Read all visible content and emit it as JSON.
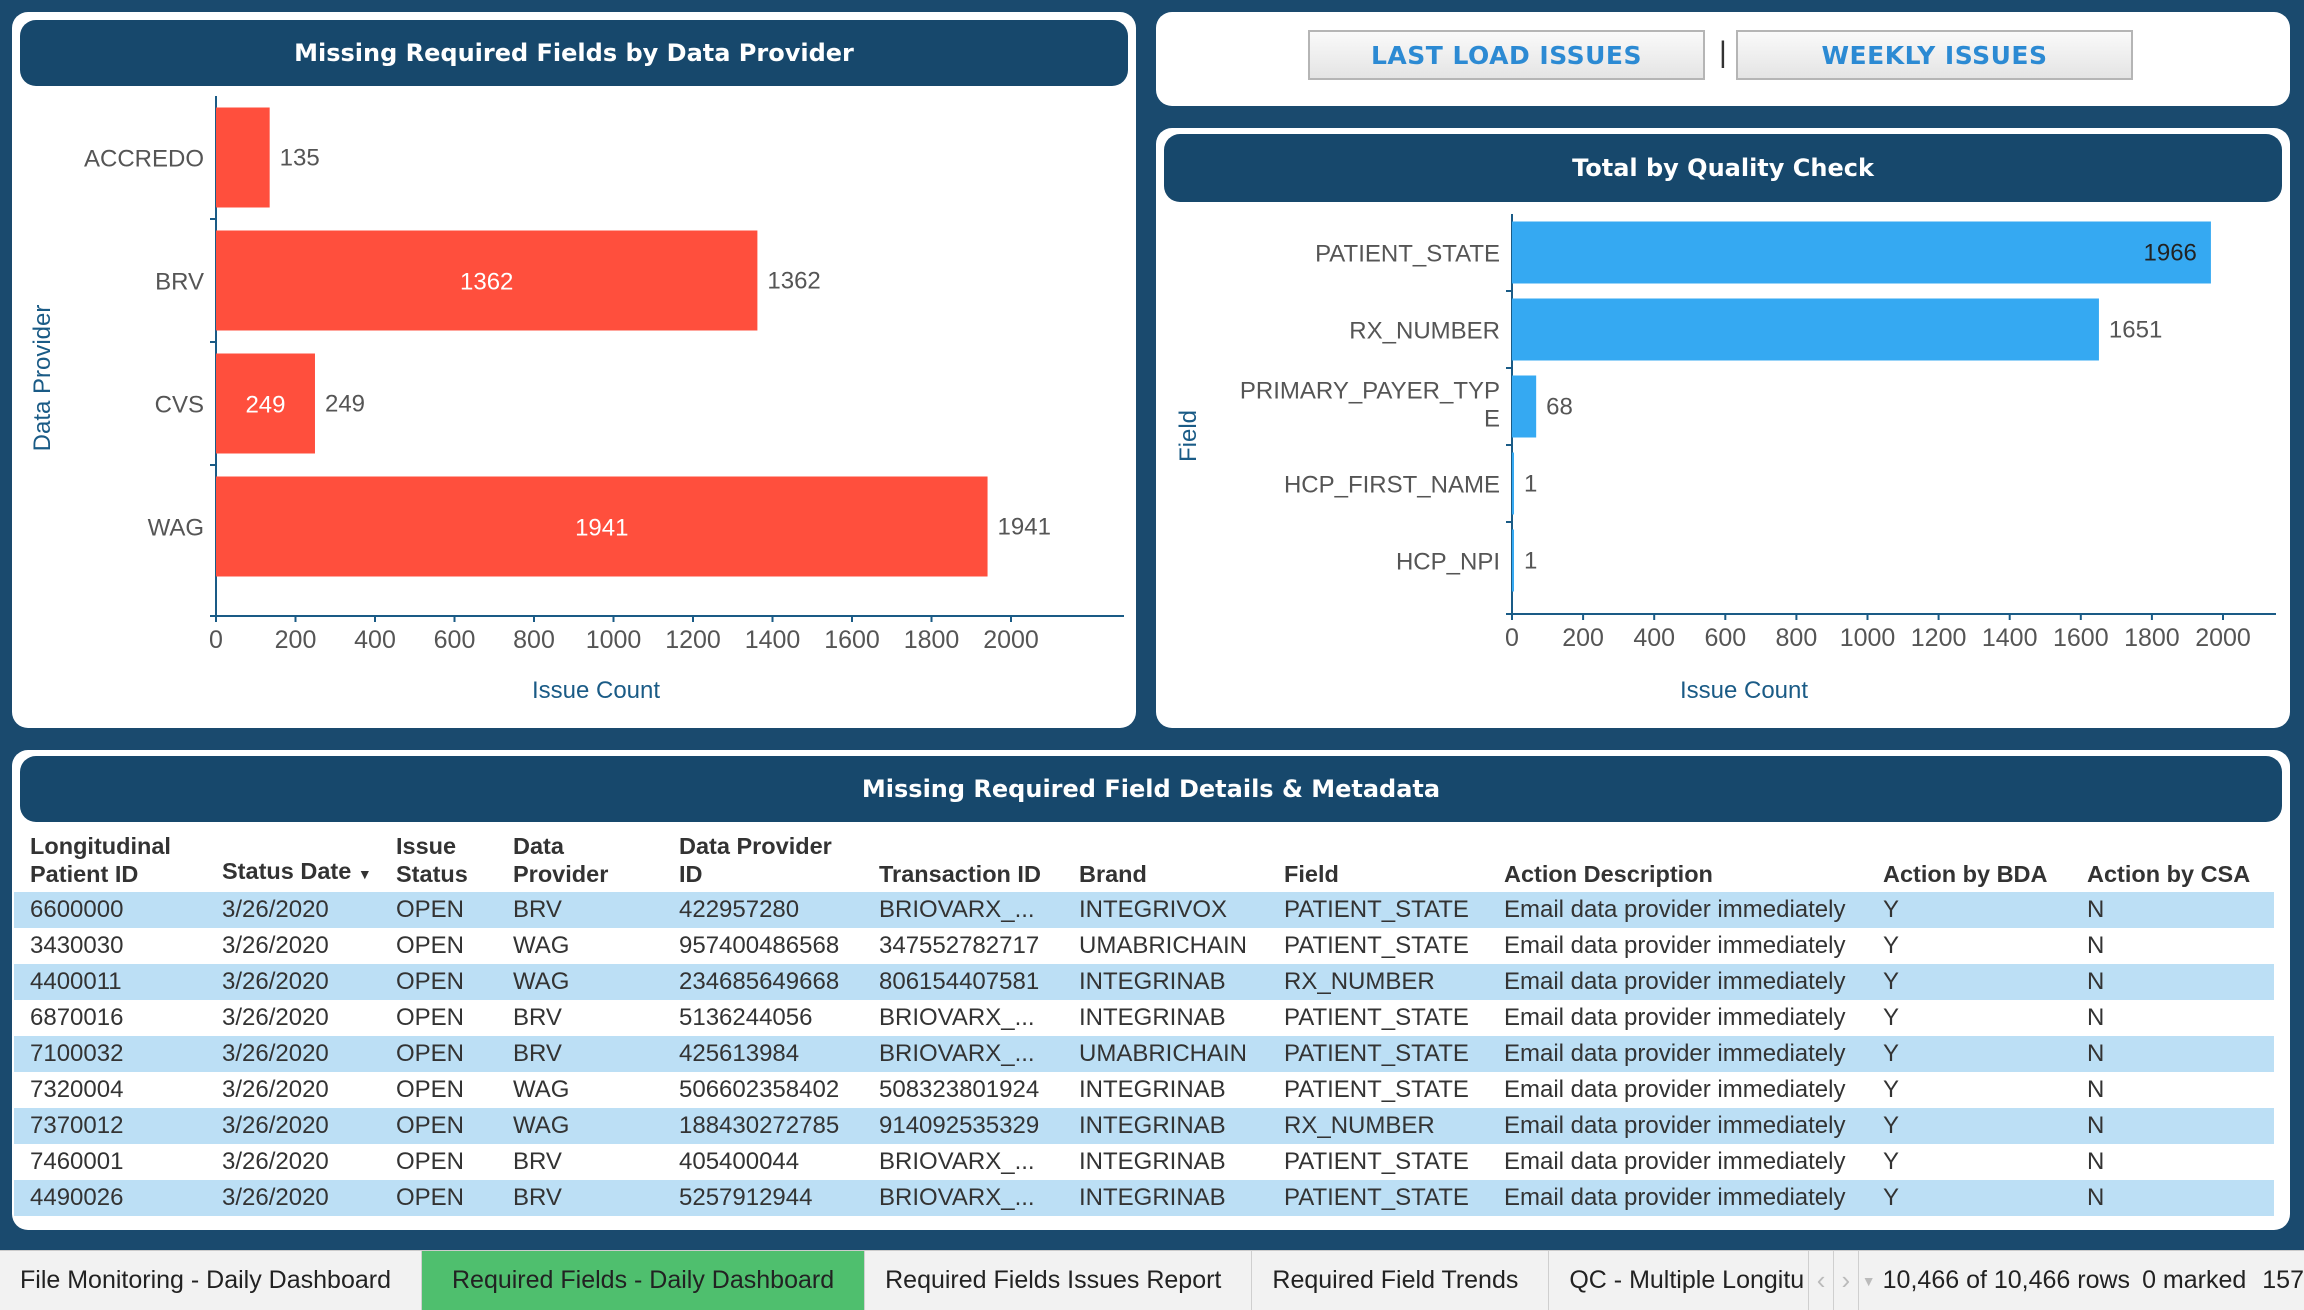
{
  "chart_left": {
    "title": "Missing Required Fields by Data Provider",
    "ylabel": "Data Provider",
    "xlabel": "Issue Count",
    "ticks": [
      "0",
      "200",
      "400",
      "600",
      "800",
      "1000",
      "1200",
      "1400",
      "1600",
      "1800",
      "2000"
    ]
  },
  "chart_right": {
    "title": "Total by Quality Check",
    "ylabel": "Field",
    "xlabel": "Issue Count",
    "ticks": [
      "0",
      "200",
      "400",
      "600",
      "800",
      "1000",
      "1200",
      "1400",
      "1600",
      "1800",
      "2000"
    ]
  },
  "chart_data": [
    {
      "type": "bar",
      "orientation": "horizontal",
      "title": "Missing Required Fields by Data Provider",
      "xlabel": "Issue Count",
      "ylabel": "Data Provider",
      "categories": [
        "ACCREDO",
        "BRV",
        "CVS",
        "WAG"
      ],
      "values": [
        135,
        1362,
        249,
        1941
      ],
      "xlim": [
        0,
        2200
      ],
      "color": "#ff4f3d"
    },
    {
      "type": "bar",
      "orientation": "horizontal",
      "title": "Total by Quality Check",
      "xlabel": "Issue Count",
      "ylabel": "Field",
      "categories": [
        "PATIENT_STATE",
        "RX_NUMBER",
        "PRIMARY_PAYER_TYPE",
        "HCP_FIRST_NAME",
        "HCP_NPI"
      ],
      "category_display": [
        [
          "PATIENT_STATE"
        ],
        [
          "RX_NUMBER"
        ],
        [
          "PRIMARY_PAYER_TYP",
          "E"
        ],
        [
          "HCP_FIRST_NAME"
        ],
        [
          "HCP_NPI"
        ]
      ],
      "values": [
        1966,
        1651,
        68,
        1,
        1
      ],
      "xlim": [
        0,
        2200
      ],
      "color": "#35a9f2"
    }
  ],
  "buttons": {
    "last_load": "LAST LOAD ISSUES",
    "separator": "|",
    "weekly": "WEEKLY ISSUES"
  },
  "table": {
    "title": "Missing Required Field Details & Metadata",
    "headers": {
      "patient_id": [
        "Longitudinal",
        "Patient ID"
      ],
      "status_date": "Status Date",
      "sort_icon": "sort-desc-icon",
      "issue_status": [
        "Issue",
        "Status"
      ],
      "data_provider": [
        "Data",
        "Provider"
      ],
      "dp_id": [
        "Data Provider",
        "ID"
      ],
      "transaction_id": "Transaction ID",
      "brand": "Brand",
      "field": "Field",
      "action_desc": "Action Description",
      "action_bda": "Action by BDA",
      "action_csa": "Action by CSA"
    },
    "rows": [
      [
        "6600000",
        "3/26/2020",
        "OPEN",
        "BRV",
        "422957280",
        "BRIOVARX_...",
        "INTEGRIVOX",
        "PATIENT_STATE",
        "Email data provider immediately",
        "Y",
        "N"
      ],
      [
        "3430030",
        "3/26/2020",
        "OPEN",
        "WAG",
        "957400486568",
        "347552782717",
        "UMABRICHAIN",
        "PATIENT_STATE",
        "Email data provider immediately",
        "Y",
        "N"
      ],
      [
        "4400011",
        "3/26/2020",
        "OPEN",
        "WAG",
        "234685649668",
        "806154407581",
        "INTEGRINAB",
        "RX_NUMBER",
        "Email data provider immediately",
        "Y",
        "N"
      ],
      [
        "6870016",
        "3/26/2020",
        "OPEN",
        "BRV",
        "5136244056",
        "BRIOVARX_...",
        "INTEGRINAB",
        "PATIENT_STATE",
        "Email data provider immediately",
        "Y",
        "N"
      ],
      [
        "7100032",
        "3/26/2020",
        "OPEN",
        "BRV",
        "425613984",
        "BRIOVARX_...",
        "UMABRICHAIN",
        "PATIENT_STATE",
        "Email data provider immediately",
        "Y",
        "N"
      ],
      [
        "7320004",
        "3/26/2020",
        "OPEN",
        "WAG",
        "506602358402",
        "508323801924",
        "INTEGRINAB",
        "PATIENT_STATE",
        "Email data provider immediately",
        "Y",
        "N"
      ],
      [
        "7370012",
        "3/26/2020",
        "OPEN",
        "WAG",
        "188430272785",
        "914092535329",
        "INTEGRINAB",
        "RX_NUMBER",
        "Email data provider immediately",
        "Y",
        "N"
      ],
      [
        "7460001",
        "3/26/2020",
        "OPEN",
        "BRV",
        "405400044",
        "BRIOVARX_...",
        "INTEGRINAB",
        "PATIENT_STATE",
        "Email data provider immediately",
        "Y",
        "N"
      ],
      [
        "4490026",
        "3/26/2020",
        "OPEN",
        "BRV",
        "5257912944",
        "BRIOVARX_...",
        "INTEGRINAB",
        "PATIENT_STATE",
        "Email data provider immediately",
        "Y",
        "N"
      ]
    ]
  },
  "tabs": [
    {
      "label": "File Monitoring - Daily Dashboard",
      "active": false
    },
    {
      "label": "Required Fields - Daily Dashboard",
      "active": true
    },
    {
      "label": "Required Fields Issues Report",
      "active": false
    },
    {
      "label": "Required Field Trends",
      "active": false
    },
    {
      "label": "QC - Multiple Longitu",
      "active": false
    }
  ],
  "nav": {
    "prev_icon": "chevron-left-icon",
    "next_icon": "chevron-right-icon",
    "menu_icon": "dropdown-caret-icon"
  },
  "status_bar": {
    "rows": "10,466 of 10,466 rows",
    "marked": "0 marked",
    "extra": "157"
  }
}
